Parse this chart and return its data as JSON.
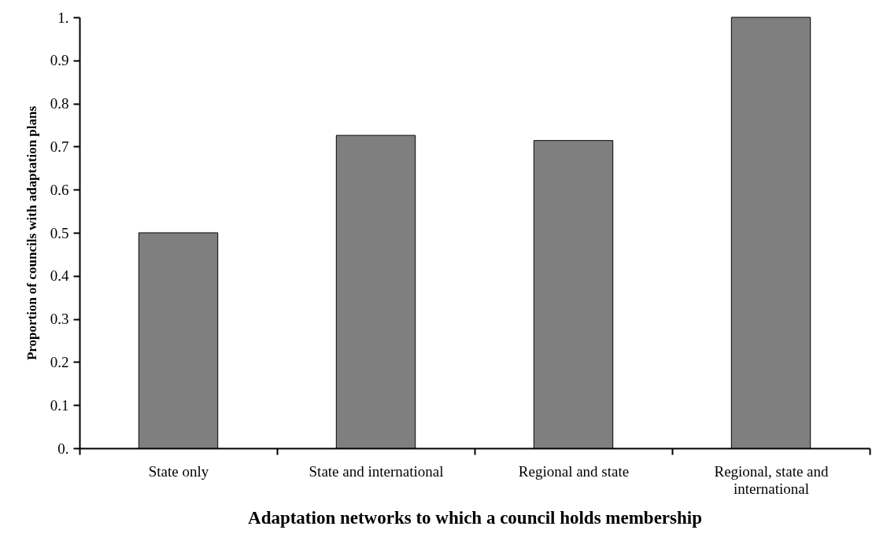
{
  "chart_data": {
    "type": "bar",
    "categories": [
      "State only",
      "State and international",
      "Regional and state",
      "Regional, state and international"
    ],
    "values": [
      0.5,
      0.726,
      0.714,
      1.0
    ],
    "color": "#7f7f7f",
    "xlabel": "Adaptation networks to which a council holds membership",
    "ylabel": "Proportion of councils with adaptation plans",
    "ylim": [
      0,
      1
    ],
    "yticks": [
      {
        "value": 0,
        "label": "0."
      },
      0.1,
      0.2,
      0.3,
      0.4,
      0.5,
      0.6,
      0.7,
      0.8,
      0.9,
      {
        "value": 1,
        "label": "1."
      }
    ],
    "grid": false
  }
}
